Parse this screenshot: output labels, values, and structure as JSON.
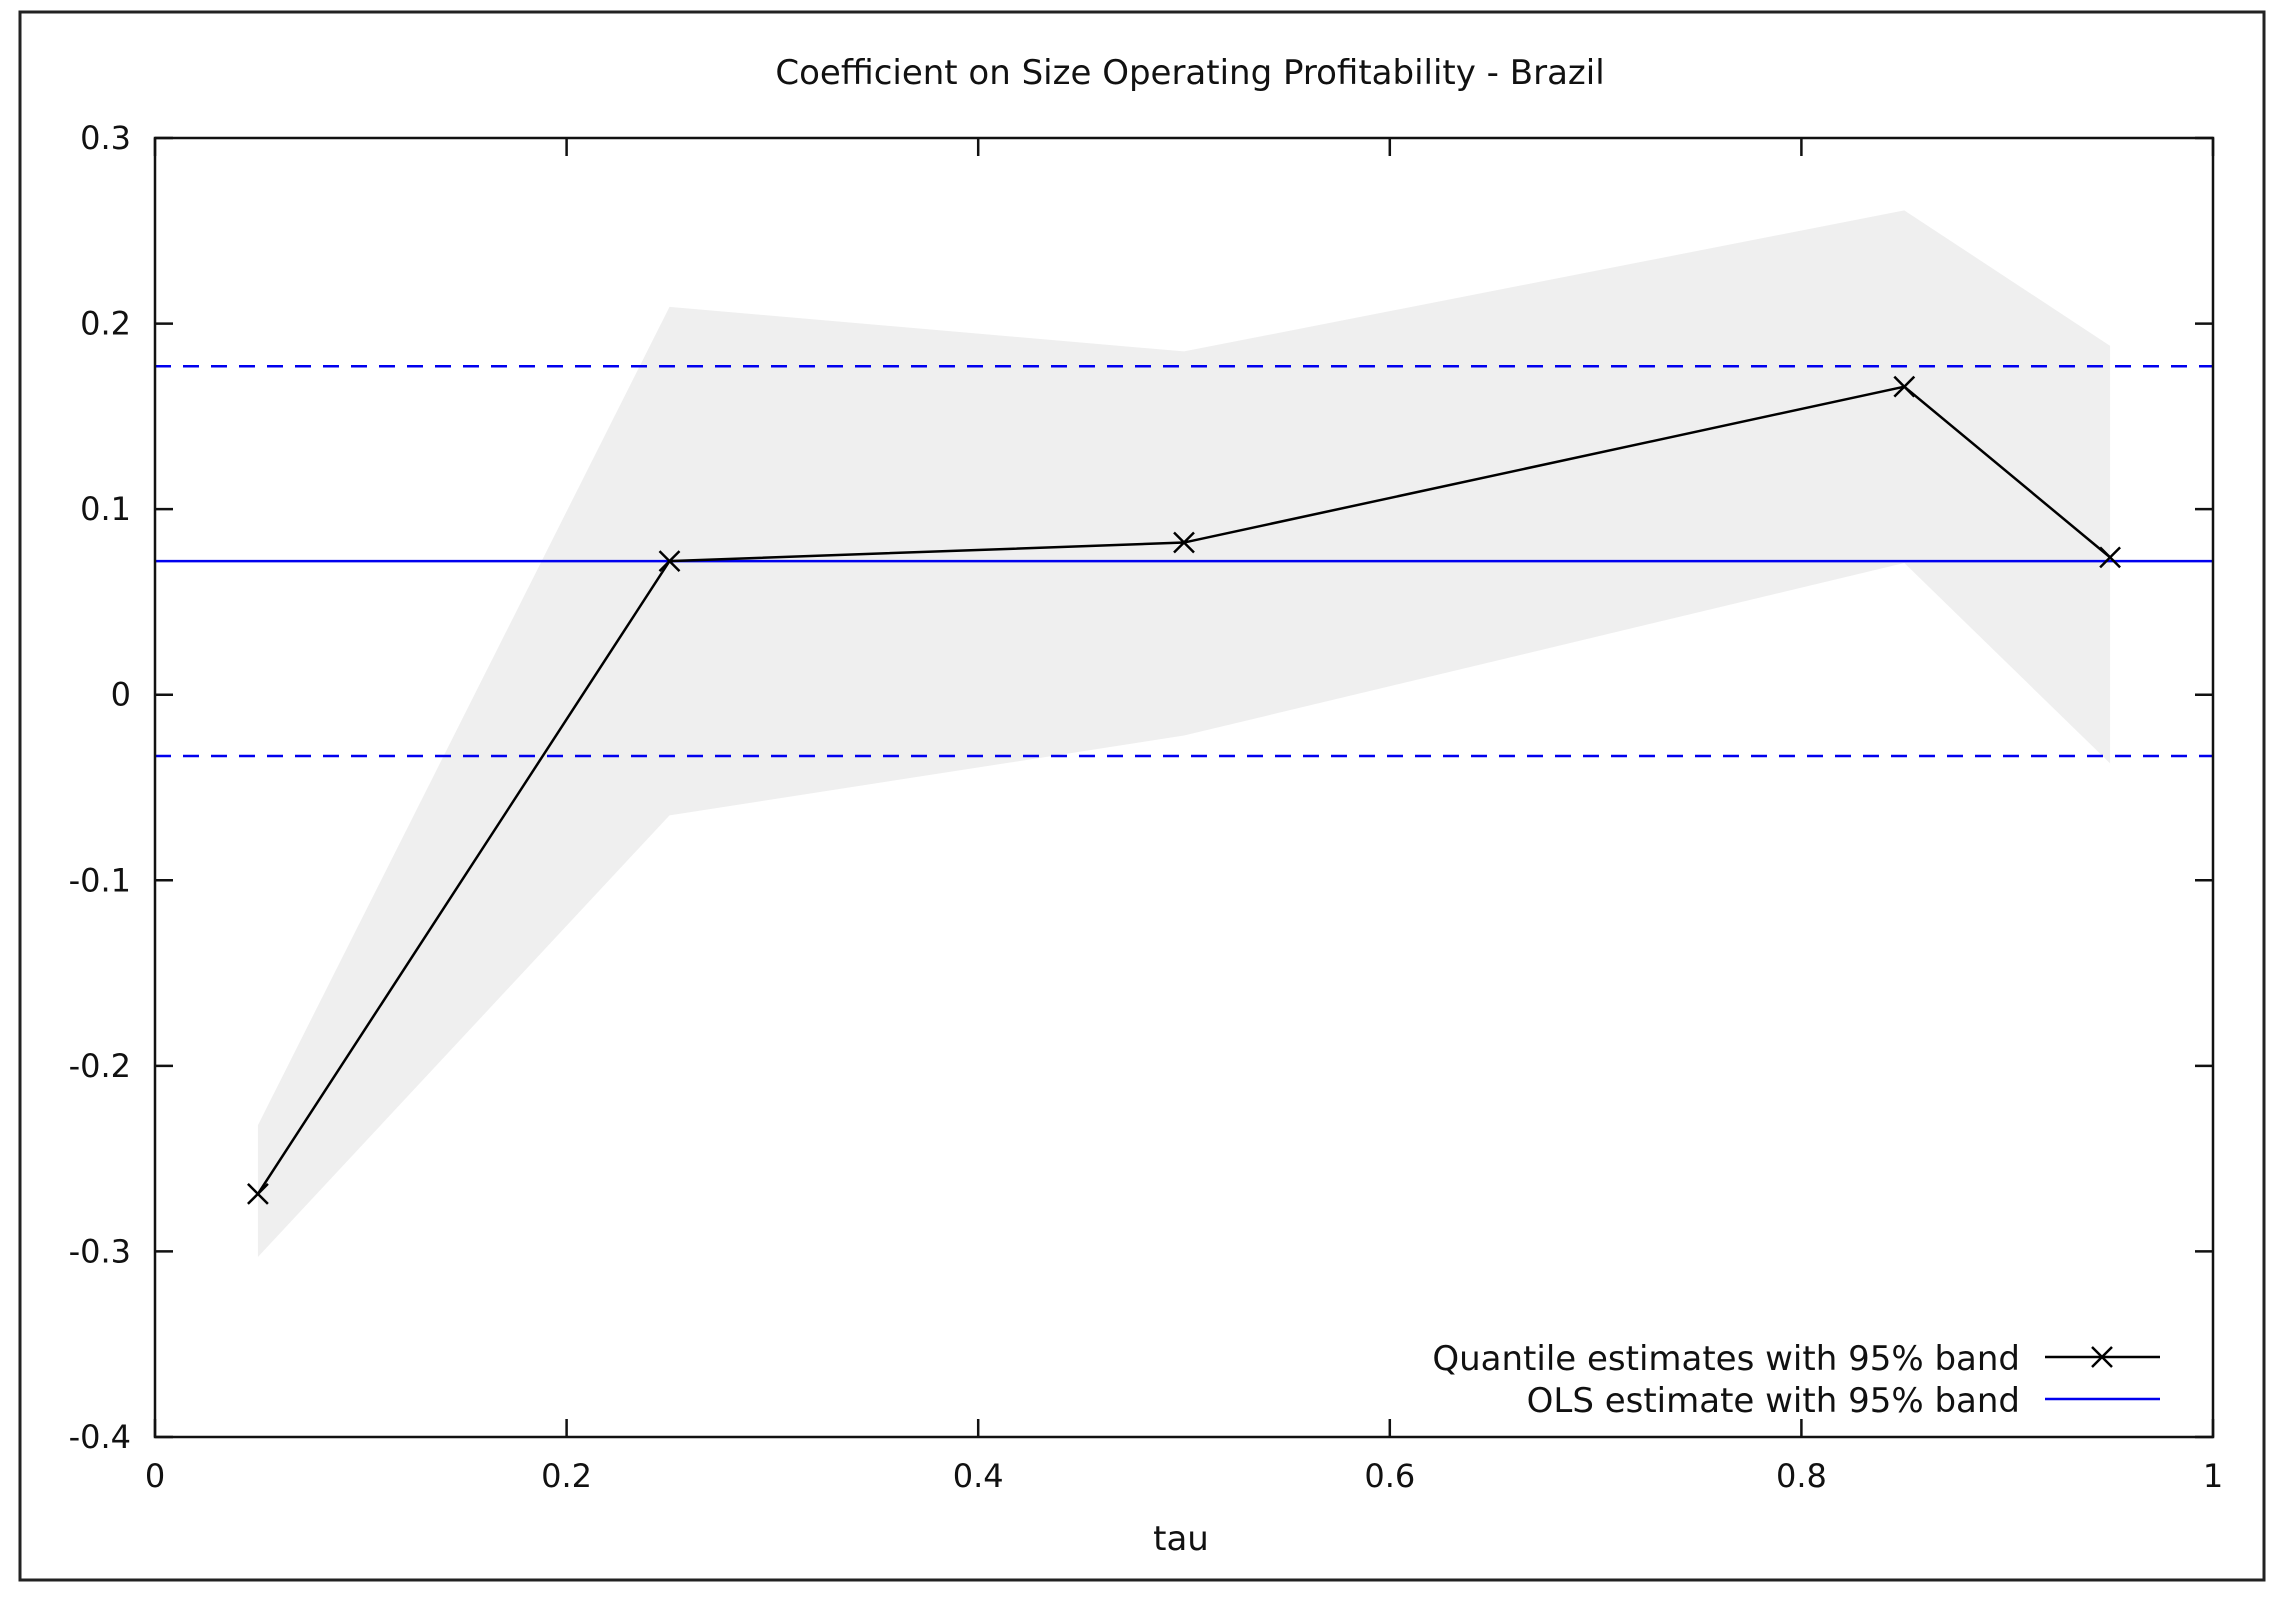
{
  "chart_data": {
    "type": "line",
    "title": "Coefficient on Size Operating Profitability - Brazil",
    "xlabel": "tau",
    "ylabel": "",
    "xlim": [
      0,
      1
    ],
    "ylim": [
      -0.4,
      0.3
    ],
    "x_ticks": [
      0,
      0.2,
      0.4,
      0.6,
      0.8,
      1
    ],
    "x_tick_labels": [
      "0",
      "0.2",
      "0.4",
      "0.6",
      "0.8",
      "1"
    ],
    "y_ticks": [
      0.3,
      0.2,
      0.1,
      0,
      -0.1,
      -0.2,
      -0.3,
      -0.4
    ],
    "y_tick_labels": [
      "0.3",
      "0.2",
      "0.1",
      "0",
      "-0.1",
      "-0.2",
      "-0.3",
      "-0.4"
    ],
    "grid": false,
    "legend_position": "bottom-right",
    "series": [
      {
        "name": "Quantile estimates with 95% band",
        "color": "#000000",
        "marker": "x",
        "x": [
          0.05,
          0.25,
          0.5,
          0.85,
          0.95
        ],
        "values": [
          -0.269,
          0.072,
          0.082,
          0.166,
          0.074
        ],
        "band_upper": [
          -0.232,
          0.209,
          0.185,
          0.261,
          0.188
        ],
        "band_lower": [
          -0.303,
          -0.065,
          -0.022,
          0.071,
          -0.037
        ],
        "band_color": "#efefef"
      },
      {
        "name": "OLS estimate with 95% band",
        "color": "#0000ee",
        "value": 0.072,
        "band_upper": 0.177,
        "band_lower": -0.033
      }
    ]
  }
}
